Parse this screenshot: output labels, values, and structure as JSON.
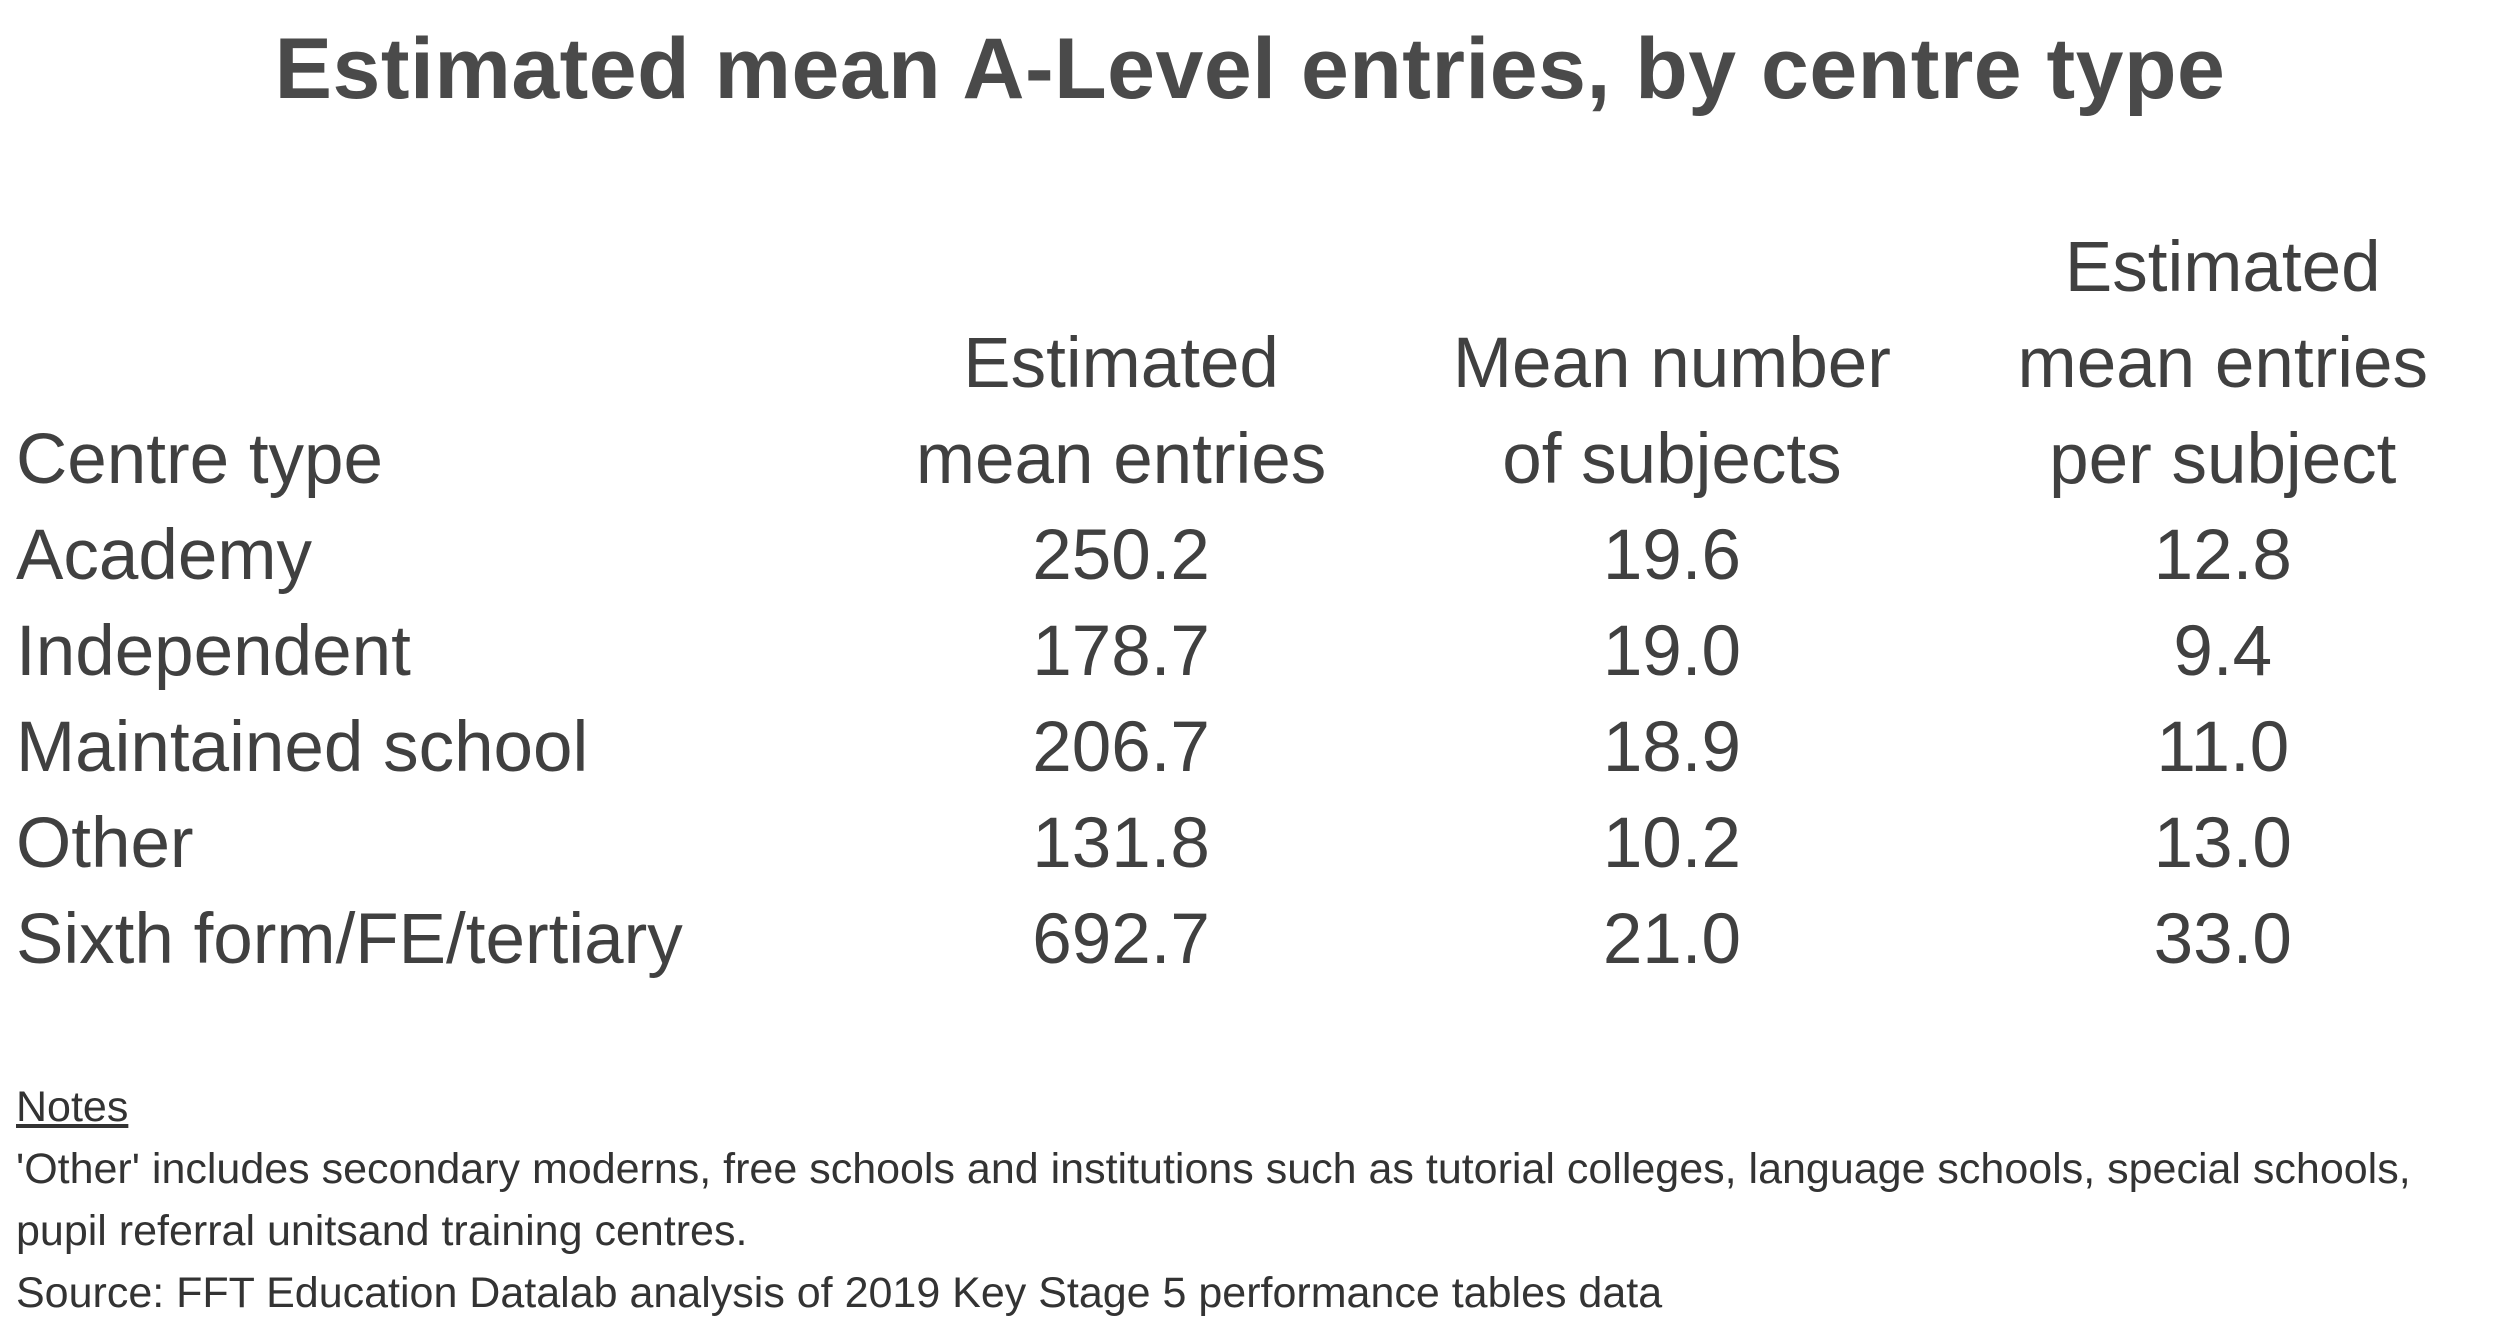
{
  "title": "Estimated mean A-Level entries, by centre type",
  "table": {
    "headers": [
      "Centre type",
      "Estimated\nmean entries",
      "Mean number\nof subjects",
      "Estimated\nmean entries\nper subject"
    ],
    "rows": [
      [
        "Academy",
        "250.2",
        "19.6",
        "12.8"
      ],
      [
        "Independent",
        "178.7",
        "19.0",
        "9.4"
      ],
      [
        "Maintained school",
        "206.7",
        "18.9",
        "11.0"
      ],
      [
        "Other",
        "131.8",
        "10.2",
        "13.0"
      ],
      [
        "Sixth form/FE/tertiary",
        "692.7",
        "21.0",
        "33.0"
      ]
    ]
  },
  "notes": {
    "heading": "Notes",
    "lines": [
      "'Other' includes secondary moderns, free schools and institutions such as tutorial colleges, language schools, special schools, pupil referral unitsand training centres.",
      "Source: FFT Education Datalab analysis of 2019 Key Stage 5 performance tables data"
    ]
  }
}
